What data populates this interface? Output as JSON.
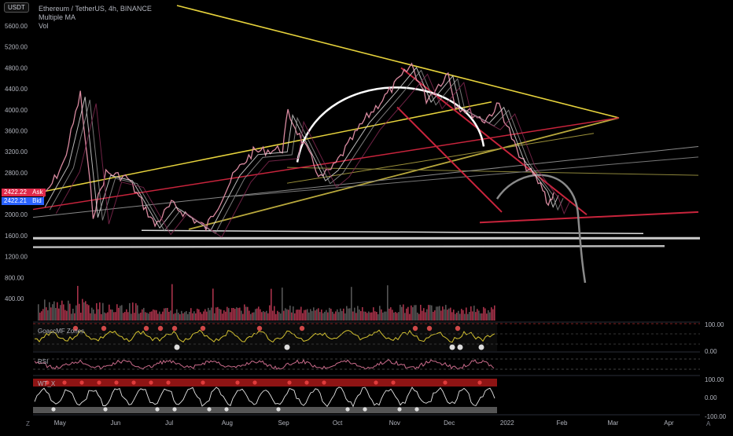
{
  "header": {
    "currency_badge": "USDT",
    "symbol_line": "Ethereum / TetherUS, 4h, BINANCE",
    "indicator_1": "Multiple MA",
    "indicator_2": "Vol"
  },
  "price_labels": {
    "ask_price": "2422.22",
    "ask_label": "Ask",
    "bid_price": "2422.21",
    "bid_label": "Bid",
    "ask_color": "#e0294a",
    "bid_color": "#2962ff"
  },
  "panes": {
    "goaccf_label": "GoaccMF Zones",
    "rsi_label": "RSI",
    "wt_label": "WT_X"
  },
  "corner_left": "Z",
  "corner_right": "A",
  "colors": {
    "background": "#000000",
    "trendline_yellow": "#e6d23c",
    "trendline_red": "#c8243c",
    "projection_gray": "#8a8a8a",
    "arc_white": "#ffffff",
    "volume_red": "#a8324a"
  },
  "chart_data": [
    {
      "type": "line",
      "title": "Ethereum / TetherUS, 4h, BINANCE",
      "xlabel": "",
      "ylabel": "",
      "x_ticks": [
        "May",
        "Jun",
        "Jul",
        "Aug",
        "Sep",
        "Oct",
        "Nov",
        "Dec",
        "2022",
        "Feb",
        "Mar",
        "Apr"
      ],
      "y_ticks": [
        5600,
        5200,
        4800,
        4400,
        4000,
        3600,
        3200,
        2800,
        2400,
        2000,
        1600,
        1200,
        800,
        400
      ],
      "ylim": [
        0,
        5800
      ],
      "grid": false,
      "series": [
        {
          "x": [
            "2021-04-20",
            "2021-05-03",
            "2021-05-12",
            "2021-05-19",
            "2021-05-26",
            "2021-06-07",
            "2021-06-22",
            "2021-07-01",
            "2021-07-20",
            "2021-08-05",
            "2021-08-15",
            "2021-08-31",
            "2021-09-03",
            "2021-09-21",
            "2021-09-28",
            "2021-10-15",
            "2021-10-30",
            "2021-11-10",
            "2021-11-18",
            "2021-11-30",
            "2021-12-04",
            "2021-12-20",
            "2021-12-28",
            "2022-01-08",
            "2022-01-21",
            "2022-01-24",
            "2022-01-27"
          ],
          "values": [
            2200,
            3000,
            4300,
            2000,
            2800,
            2700,
            1800,
            2200,
            1750,
            2800,
            3200,
            3250,
            3950,
            2700,
            2900,
            3800,
            4400,
            4860,
            4200,
            4700,
            4100,
            3800,
            4100,
            3100,
            2500,
            2200,
            2422
          ]
        }
      ]
    },
    {
      "type": "bar",
      "title": "Vol",
      "x": [
        "May",
        "Jun",
        "Jul",
        "Aug",
        "Sep",
        "Oct",
        "Nov",
        "Dec",
        "2022"
      ],
      "values": [
        0.7,
        0.55,
        0.3,
        0.35,
        0.45,
        0.35,
        0.4,
        0.45,
        0.4
      ]
    },
    {
      "type": "line",
      "title": "GoaccMF Zones",
      "y_ticks": [
        100.0,
        0.0
      ],
      "ylim": [
        0,
        100
      ]
    },
    {
      "type": "line",
      "title": "RSI",
      "ylim": [
        0,
        100
      ]
    },
    {
      "type": "line",
      "title": "WT_X",
      "y_ticks": [
        100.0,
        0.0,
        -100.0
      ],
      "ylim": [
        -100,
        100
      ]
    }
  ]
}
